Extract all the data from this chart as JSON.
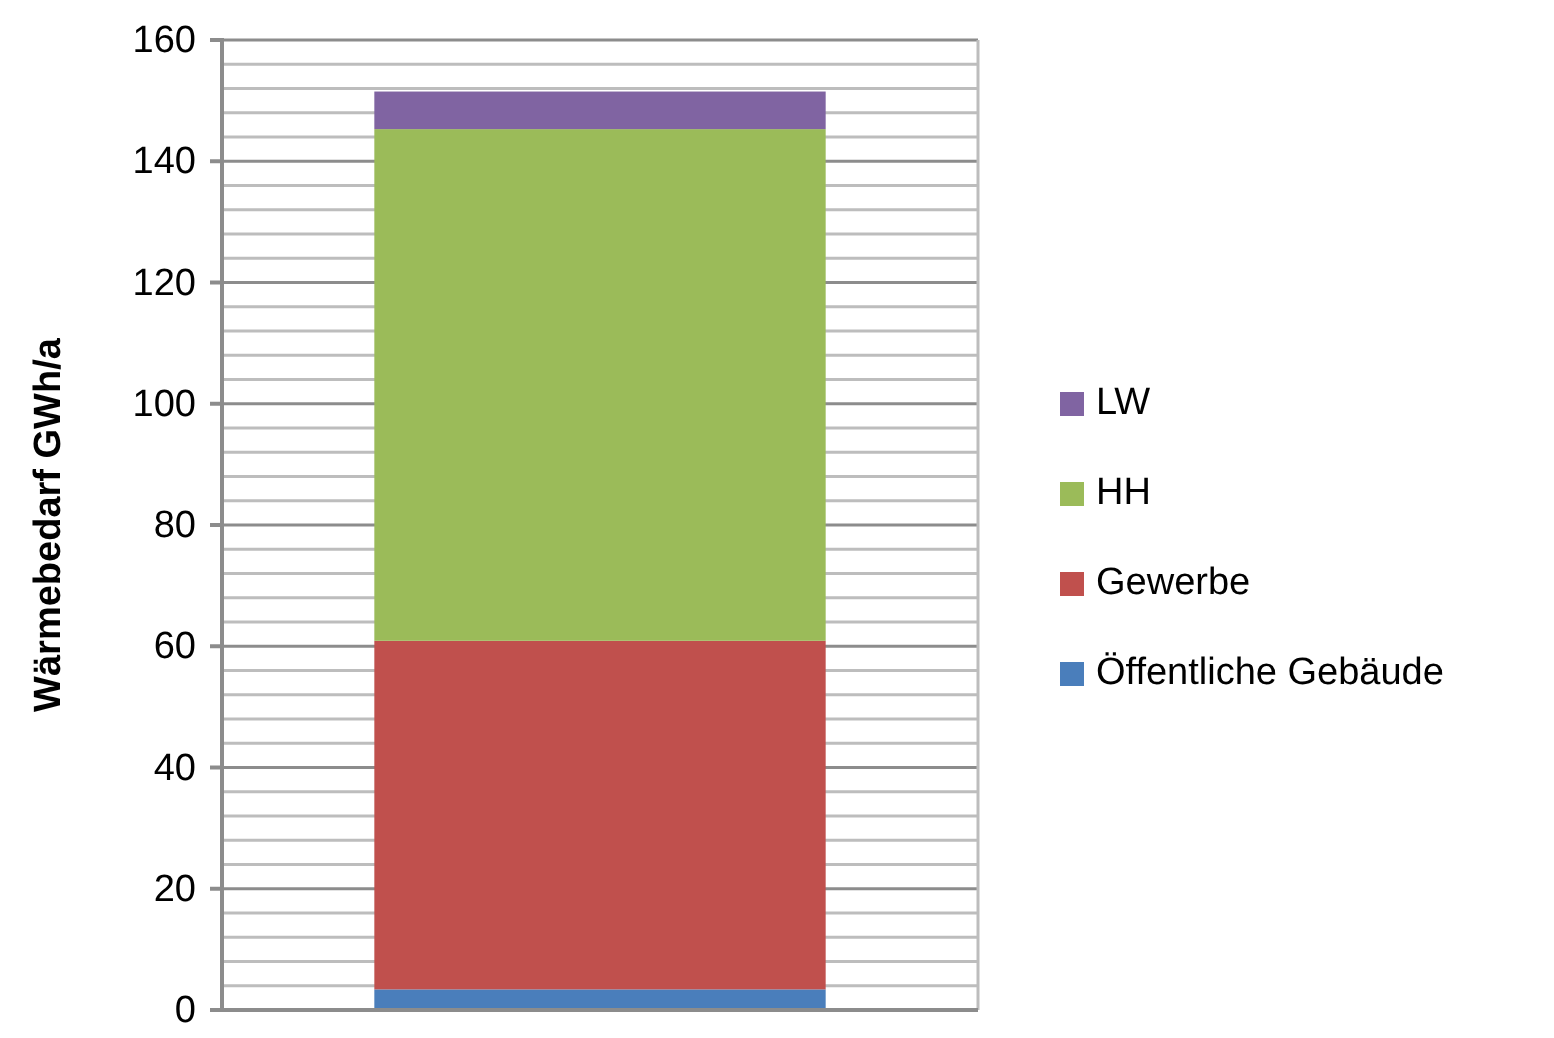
{
  "chart_data": {
    "type": "bar",
    "stacked": true,
    "ylabel": "Wärmebedarf GWh/a",
    "categories": [
      null
    ],
    "series": [
      {
        "name": "Öffentliche Gebäude",
        "color": "#4a7ebb",
        "values": [
          3.4
        ]
      },
      {
        "name": "Gewerbe",
        "color": "#c0504d",
        "values": [
          57.5
        ]
      },
      {
        "name": "HH",
        "color": "#9bbb59",
        "values": [
          84.4
        ]
      },
      {
        "name": "LW",
        "color": "#8064a2",
        "values": [
          6.2
        ]
      }
    ],
    "ylim": [
      0,
      160
    ],
    "yticks": [
      0,
      20,
      40,
      60,
      80,
      100,
      120,
      140,
      160
    ],
    "grid": "y",
    "legend": "right"
  }
}
